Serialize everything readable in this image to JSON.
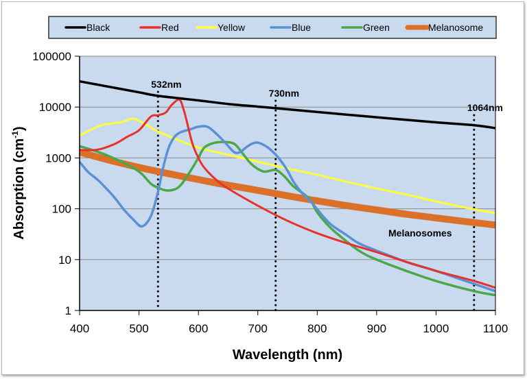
{
  "chart_data": {
    "type": "line",
    "title": "",
    "xlabel": "Wavelength (nm)",
    "ylabel": "Absorption (cm-1)",
    "ylabel_main": "Absorption (cm",
    "ylabel_sup": "-1",
    "ylabel_close": ")",
    "xlim": [
      400,
      1100
    ],
    "ylim": [
      1,
      100000
    ],
    "yscale": "log",
    "grid": "horizontal",
    "legend_position": "top",
    "x_ticks": [
      "400",
      "500",
      "600",
      "700",
      "800",
      "900",
      "1000",
      "1100"
    ],
    "y_ticks": [
      "1",
      "10",
      "100",
      "1000",
      "10000",
      "100000"
    ],
    "plot_background": "#c9d9ee",
    "series": [
      {
        "name": "Black",
        "color": "#000000",
        "x": [
          400,
          450,
          500,
          532,
          600,
          650,
          700,
          730,
          800,
          900,
          1000,
          1064,
          1100
        ],
        "y": [
          32000,
          25000,
          19500,
          16600,
          13500,
          11500,
          10200,
          9500,
          8000,
          6300,
          5000,
          4400,
          3850
        ]
      },
      {
        "name": "Red",
        "color": "#e8312a",
        "x": [
          400,
          430,
          460,
          480,
          500,
          520,
          532,
          545,
          555,
          568,
          575,
          580,
          590,
          600,
          610,
          630,
          650,
          700,
          750,
          800,
          850,
          900,
          950,
          1000,
          1064,
          1100
        ],
        "y": [
          1430,
          1450,
          1900,
          2600,
          3500,
          6500,
          6900,
          7800,
          11000,
          14000,
          9000,
          5500,
          1900,
          1000,
          640,
          370,
          250,
          115,
          58,
          33,
          21,
          14,
          9,
          6,
          3.8,
          2.8
        ]
      },
      {
        "name": "Yellow",
        "color": "#ffff3c",
        "x": [
          400,
          420,
          440,
          470,
          490,
          510,
          532,
          560,
          600,
          650,
          700,
          750,
          800,
          850,
          900,
          950,
          1000,
          1050,
          1100
        ],
        "y": [
          2750,
          3600,
          4500,
          5000,
          5900,
          4600,
          3300,
          2400,
          1600,
          1150,
          840,
          620,
          465,
          340,
          250,
          190,
          140,
          105,
          82
        ]
      },
      {
        "name": "Blue",
        "color": "#5b8fd6",
        "x": [
          400,
          415,
          430,
          445,
          460,
          475,
          490,
          505,
          520,
          532,
          540,
          550,
          560,
          570,
          585,
          600,
          615,
          630,
          645,
          660,
          670,
          680,
          690,
          700,
          710,
          720,
          735,
          750,
          760,
          775,
          790,
          820,
          850,
          870,
          900,
          950,
          1000,
          1050,
          1100
        ],
        "y": [
          830,
          520,
          375,
          250,
          160,
          95,
          62,
          45,
          72,
          215,
          600,
          1600,
          2600,
          3200,
          3600,
          4100,
          4100,
          3000,
          2000,
          1300,
          1300,
          1600,
          1900,
          2000,
          1800,
          1500,
          1000,
          560,
          340,
          200,
          135,
          53,
          30,
          21,
          15,
          9,
          6,
          3.8,
          2.4
        ]
      },
      {
        "name": "Green",
        "color": "#4aa847",
        "x": [
          400,
          420,
          440,
          465,
          490,
          505,
          520,
          532,
          545,
          560,
          570,
          580,
          590,
          600,
          610,
          625,
          640,
          660,
          675,
          690,
          710,
          730,
          745,
          760,
          780,
          790,
          800,
          820,
          840,
          870,
          900,
          950,
          1000,
          1064,
          1100
        ],
        "y": [
          1700,
          1450,
          1200,
          900,
          640,
          480,
          310,
          260,
          230,
          240,
          290,
          420,
          640,
          1000,
          1600,
          1950,
          2050,
          1900,
          1200,
          740,
          540,
          580,
          430,
          275,
          185,
          140,
          85,
          45,
          28,
          15,
          10,
          6,
          3.8,
          2.4,
          2.0
        ]
      },
      {
        "name": "Melanosome",
        "color": "#db7129",
        "x": [
          400,
          450,
          500,
          532,
          600,
          650,
          700,
          750,
          800,
          850,
          900,
          950,
          1000,
          1050,
          1100
        ],
        "y": [
          1300,
          900,
          650,
          540,
          375,
          290,
          230,
          180,
          143,
          115,
          95,
          78,
          66,
          56,
          48
        ]
      }
    ],
    "vertical_markers": [
      {
        "x": 532,
        "label": "532nm"
      },
      {
        "x": 730,
        "label": "730nm"
      },
      {
        "x": 1064,
        "label": "1064nm"
      }
    ],
    "annotations": [
      {
        "text": "Melanosomes",
        "near_x": 960,
        "near_y": 40
      }
    ]
  }
}
